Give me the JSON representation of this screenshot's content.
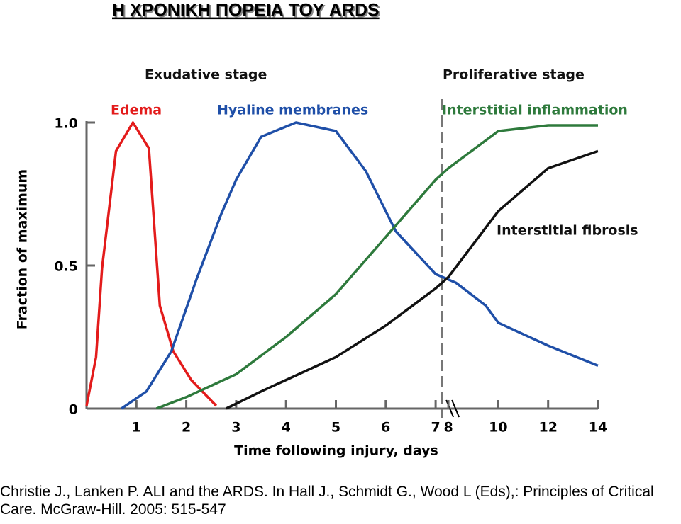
{
  "title": "Η ΧΡΟΝΙΚΗ ΠΟΡΕΙΑ ΤΟΥ ARDS",
  "citation": "Christie J., Lanken P. ALI and the ARDS. In Hall J., Schmidt G., Wood L (Eds),: Principles of Critical Care. McGraw-Hill. 2005: 515-547",
  "chart_data": {
    "type": "line",
    "annotations": [
      "Exudative stage",
      "Proliferative stage"
    ],
    "xlabel": "Time following injury, days",
    "ylabel": "Fraction of maximum",
    "xlim": [
      0,
      14
    ],
    "xticks": [
      1,
      2,
      3,
      4,
      5,
      6,
      7,
      8,
      10,
      12,
      14
    ],
    "xbreak": [
      7,
      8
    ],
    "ylim": [
      0,
      1
    ],
    "yticks": [
      0,
      0.5,
      {
        "value": 1,
        "label": "1.0"
      }
    ],
    "series": [
      {
        "name": "Edema",
        "color": "#e31b1b",
        "x": [
          0,
          0.19,
          0.31,
          0.59,
          0.93,
          1.25,
          1.47,
          1.74,
          2.1,
          2.6
        ],
        "values": [
          0.01,
          0.18,
          0.49,
          0.9,
          1.0,
          0.91,
          0.36,
          0.2,
          0.1,
          0.01
        ]
      },
      {
        "name": "Hyaline membranes",
        "color": "#1f4fa8",
        "x": [
          0.7,
          1.2,
          1.7,
          2.2,
          2.7,
          3.0,
          3.5,
          4.2,
          5.0,
          5.6,
          6.2,
          7.0,
          8.3,
          9.5,
          10,
          12,
          14
        ],
        "values": [
          0,
          0.06,
          0.2,
          0.45,
          0.68,
          0.8,
          0.95,
          1.0,
          0.97,
          0.83,
          0.62,
          0.47,
          0.44,
          0.36,
          0.3,
          0.22,
          0.15
        ]
      },
      {
        "name": "Interstitial inflammation",
        "color": "#2e7a3c",
        "x": [
          1.4,
          2,
          3,
          4,
          5,
          6,
          7,
          8,
          10,
          12,
          14
        ],
        "values": [
          0,
          0.04,
          0.12,
          0.25,
          0.4,
          0.6,
          0.8,
          0.84,
          0.97,
          0.99,
          0.99
        ]
      },
      {
        "name": "Interstitial fibrosis",
        "color": "#111111",
        "x": [
          2.8,
          3.5,
          4,
          5,
          6,
          7,
          8,
          10,
          12,
          14
        ],
        "values": [
          0,
          0.06,
          0.1,
          0.18,
          0.29,
          0.42,
          0.46,
          0.69,
          0.84,
          0.9
        ]
      }
    ]
  }
}
